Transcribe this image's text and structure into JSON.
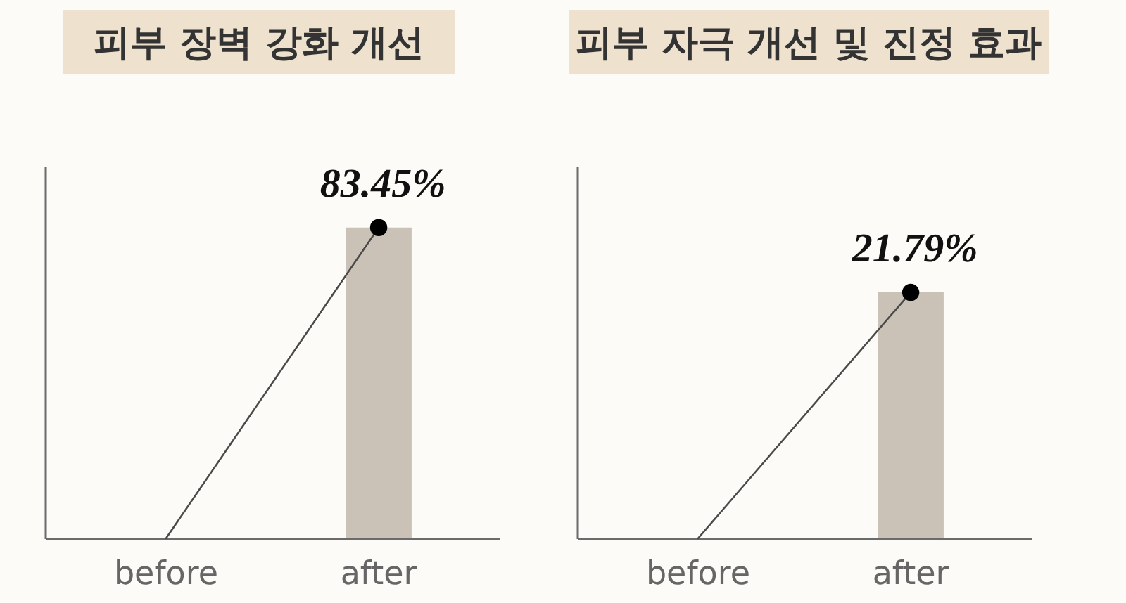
{
  "chart_data": [
    {
      "type": "bar",
      "title": "피부 장벽 강화 개선",
      "categories": [
        "before",
        "after"
      ],
      "series": [
        {
          "color": "#cac1b7",
          "values": [
            null,
            83.45
          ]
        },
        {
          "type": "line",
          "color": "#4a4a4a",
          "values": [
            0,
            83.45
          ]
        },
        {
          "type": "scatter",
          "color": "#000000",
          "values": [
            null,
            83.45
          ],
          "marker": "circle",
          "value_labels": [
            null,
            "83.45%"
          ]
        }
      ],
      "ylim": [
        0,
        100
      ],
      "tick_labels": "x"
    },
    {
      "type": "bar",
      "title": "피부 자극 개선 및 진정 효과",
      "categories": [
        "before",
        "after"
      ],
      "series": [
        {
          "color": "#cac1b7",
          "values": [
            null,
            21.79
          ]
        },
        {
          "type": "line",
          "color": "#4a4a4a",
          "values": [
            0,
            21.79
          ]
        },
        {
          "type": "scatter",
          "color": "#000000",
          "values": [
            null,
            21.79
          ],
          "marker": "circle",
          "value_labels": [
            null,
            "21.79%"
          ]
        }
      ],
      "ylim": [
        0,
        33
      ],
      "tick_labels": "x"
    }
  ]
}
